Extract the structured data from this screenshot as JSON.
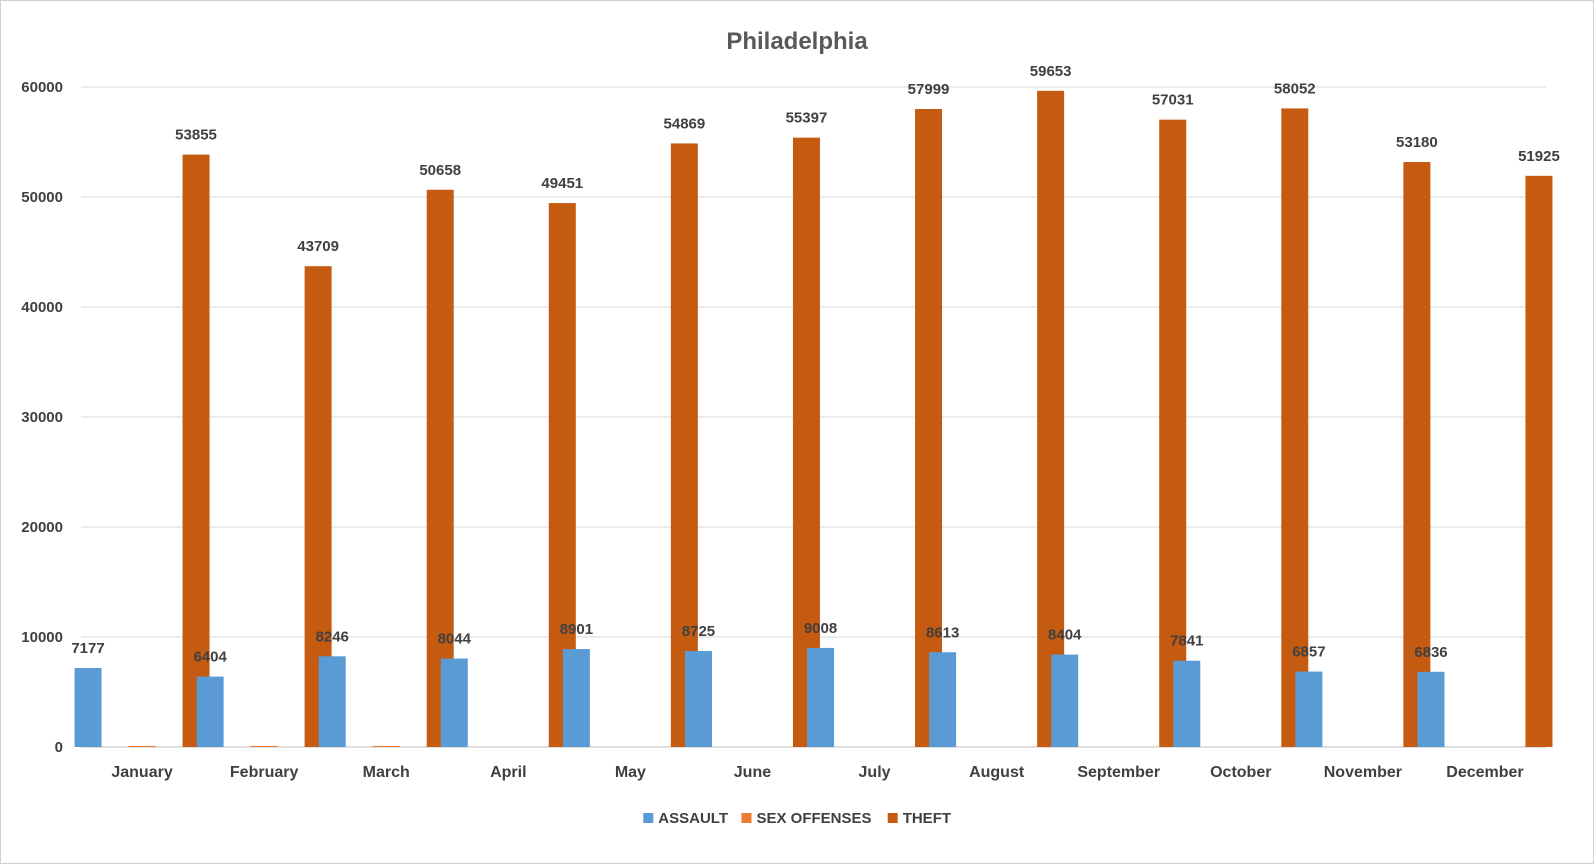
{
  "chart_data": {
    "type": "bar",
    "title": "Philadelphia",
    "xlabel": "",
    "ylabel": "",
    "ylim": [
      0,
      60000
    ],
    "yticks": [
      0,
      10000,
      20000,
      30000,
      40000,
      50000,
      60000
    ],
    "grid": true,
    "legend_position": "bottom",
    "categories": [
      "January",
      "February",
      "March",
      "April",
      "May",
      "June",
      "July",
      "August",
      "September",
      "October",
      "November",
      "December"
    ],
    "series": [
      {
        "name": "ASSAULT",
        "color": "#5b9bd5",
        "show_labels": true,
        "values": [
          7177,
          6404,
          8246,
          8044,
          8901,
          8725,
          9008,
          8613,
          8404,
          7841,
          6857,
          6836
        ]
      },
      {
        "name": "SEX OFFENSES",
        "color": "#ed7d31",
        "show_labels": false,
        "values": [
          100,
          100,
          100,
          0,
          0,
          0,
          0,
          0,
          0,
          0,
          0,
          0
        ]
      },
      {
        "name": "THEFT",
        "color": "#c55a11",
        "show_labels": true,
        "values": [
          53855,
          43709,
          50658,
          49451,
          54869,
          55397,
          57999,
          59653,
          57031,
          58052,
          53180,
          51925
        ]
      }
    ]
  }
}
